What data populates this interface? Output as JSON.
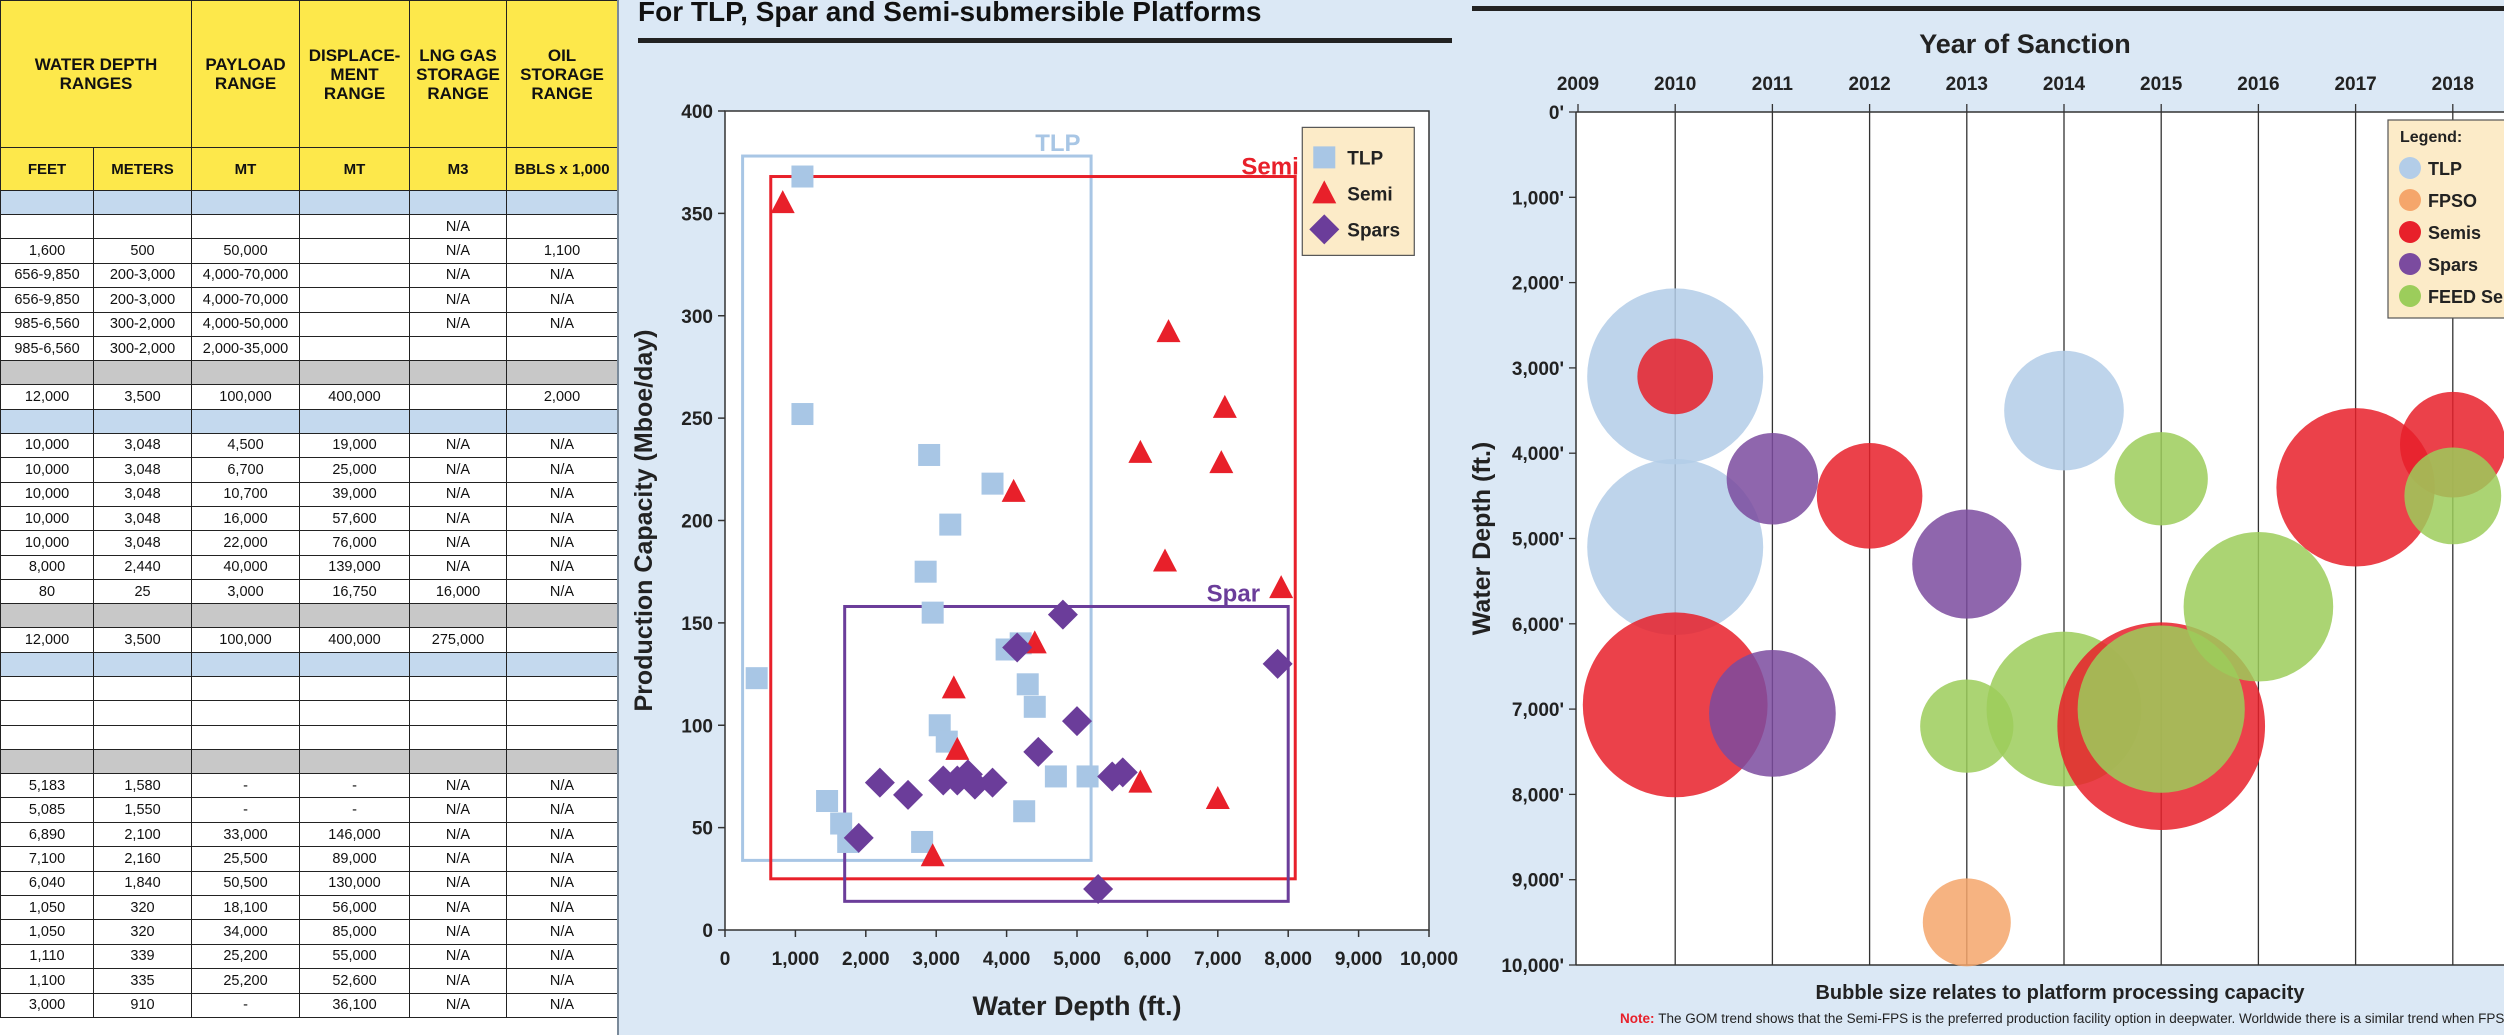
{
  "table": {
    "headers": [
      "WATER DEPTH RANGES",
      "PAYLOAD RANGE",
      "DISPLACE-MENT RANGE",
      "LNG GAS STORAGE RANGE",
      "OIL STORAGE RANGE"
    ],
    "units": [
      "FEET",
      "METERS",
      "MT",
      "MT",
      "M3",
      "BBLS x 1,000"
    ],
    "rows": [
      {
        "type": "blue",
        "cells": [
          "",
          "",
          "",
          "",
          "",
          ""
        ]
      },
      {
        "type": "white",
        "cells": [
          "",
          "",
          "",
          "",
          "N/A",
          ""
        ]
      },
      {
        "type": "white",
        "cells": [
          "1,600",
          "500",
          "50,000",
          "",
          "N/A",
          "1,100"
        ]
      },
      {
        "type": "white",
        "cells": [
          "656-9,850",
          "200-3,000",
          "4,000-70,000",
          "",
          "N/A",
          "N/A"
        ]
      },
      {
        "type": "white",
        "cells": [
          "656-9,850",
          "200-3,000",
          "4,000-70,000",
          "",
          "N/A",
          "N/A"
        ]
      },
      {
        "type": "white",
        "cells": [
          "985-6,560",
          "300-2,000",
          "4,000-50,000",
          "",
          "N/A",
          "N/A"
        ]
      },
      {
        "type": "white",
        "cells": [
          "985-6,560",
          "300-2,000",
          "2,000-35,000",
          "",
          "",
          ""
        ]
      },
      {
        "type": "gray",
        "cells": [
          "",
          "",
          "",
          "",
          "",
          ""
        ]
      },
      {
        "type": "white",
        "cells": [
          "12,000",
          "3,500",
          "100,000",
          "400,000",
          "",
          "2,000"
        ]
      },
      {
        "type": "blue",
        "cells": [
          "",
          "",
          "",
          "",
          "",
          ""
        ]
      },
      {
        "type": "white",
        "cells": [
          "10,000",
          "3,048",
          "4,500",
          "19,000",
          "N/A",
          "N/A"
        ]
      },
      {
        "type": "white",
        "cells": [
          "10,000",
          "3,048",
          "6,700",
          "25,000",
          "N/A",
          "N/A"
        ]
      },
      {
        "type": "white",
        "cells": [
          "10,000",
          "3,048",
          "10,700",
          "39,000",
          "N/A",
          "N/A"
        ]
      },
      {
        "type": "white",
        "cells": [
          "10,000",
          "3,048",
          "16,000",
          "57,600",
          "N/A",
          "N/A"
        ]
      },
      {
        "type": "white",
        "cells": [
          "10,000",
          "3,048",
          "22,000",
          "76,000",
          "N/A",
          "N/A"
        ]
      },
      {
        "type": "white",
        "cells": [
          "8,000",
          "2,440",
          "40,000",
          "139,000",
          "N/A",
          "N/A"
        ]
      },
      {
        "type": "white",
        "cells": [
          "80",
          "25",
          "3,000",
          "16,750",
          "16,000",
          "N/A"
        ]
      },
      {
        "type": "gray",
        "cells": [
          "",
          "",
          "",
          "",
          "",
          ""
        ]
      },
      {
        "type": "white",
        "cells": [
          "12,000",
          "3,500",
          "100,000",
          "400,000",
          "275,000",
          ""
        ]
      },
      {
        "type": "blue",
        "cells": [
          "",
          "",
          "",
          "",
          "",
          ""
        ]
      },
      {
        "type": "white",
        "cells": [
          "",
          "",
          "",
          "",
          "",
          ""
        ]
      },
      {
        "type": "white",
        "cells": [
          "",
          "",
          "",
          "",
          "",
          ""
        ]
      },
      {
        "type": "white",
        "cells": [
          "",
          "",
          "",
          "",
          "",
          ""
        ]
      },
      {
        "type": "gray",
        "cells": [
          "",
          "",
          "",
          "",
          "",
          ""
        ]
      },
      {
        "type": "white",
        "cells": [
          "5,183",
          "1,580",
          "-",
          "-",
          "N/A",
          "N/A"
        ]
      },
      {
        "type": "white",
        "cells": [
          "5,085",
          "1,550",
          "-",
          "-",
          "N/A",
          "N/A"
        ]
      },
      {
        "type": "white",
        "cells": [
          "6,890",
          "2,100",
          "33,000",
          "146,000",
          "N/A",
          "N/A"
        ]
      },
      {
        "type": "white",
        "cells": [
          "7,100",
          "2,160",
          "25,500",
          "89,000",
          "N/A",
          "N/A"
        ]
      },
      {
        "type": "white",
        "cells": [
          "6,040",
          "1,840",
          "50,500",
          "130,000",
          "N/A",
          "N/A"
        ]
      },
      {
        "type": "white",
        "cells": [
          "1,050",
          "320",
          "18,100",
          "56,000",
          "N/A",
          "N/A"
        ]
      },
      {
        "type": "white",
        "cells": [
          "1,050",
          "320",
          "34,000",
          "85,000",
          "N/A",
          "N/A"
        ]
      },
      {
        "type": "white",
        "cells": [
          "1,110",
          "339",
          "25,200",
          "55,000",
          "N/A",
          "N/A"
        ]
      },
      {
        "type": "white",
        "cells": [
          "1,100",
          "335",
          "25,200",
          "52,600",
          "N/A",
          "N/A"
        ]
      },
      {
        "type": "white",
        "cells": [
          "3,000",
          "910",
          "-",
          "36,100",
          "N/A",
          "N/A"
        ]
      }
    ]
  },
  "mid": {
    "title": "For TLP, Spar and Semi-submersible Platforms"
  },
  "chart_data": [
    {
      "type": "scatter",
      "xlabel": "Water Depth (ft.)",
      "ylabel": "Production Capacity (Mboe/day)",
      "xlim": [
        0,
        10000
      ],
      "ylim": [
        0,
        400
      ],
      "xticks": [
        0,
        1000,
        2000,
        3000,
        4000,
        5000,
        6000,
        7000,
        8000,
        9000,
        10000
      ],
      "xtick_labels": [
        "0",
        "1,000",
        "2,000",
        "3,000",
        "4,000",
        "5,000",
        "6,000",
        "7,000",
        "8,000",
        "9,000",
        "10,000"
      ],
      "yticks": [
        0,
        50,
        100,
        150,
        200,
        250,
        300,
        350,
        400
      ],
      "legend_position": "top-right",
      "series": [
        {
          "name": "TLP",
          "marker": "square",
          "color": "#a8c6e5",
          "points": [
            [
              450,
              123
            ],
            [
              1100,
              368
            ],
            [
              1100,
              252
            ],
            [
              1450,
              63
            ],
            [
              1650,
              52
            ],
            [
              1750,
              43
            ],
            [
              2800,
              43
            ],
            [
              2850,
              175
            ],
            [
              2900,
              232
            ],
            [
              2950,
              155
            ],
            [
              3050,
              100
            ],
            [
              3150,
              92
            ],
            [
              3200,
              198
            ],
            [
              3800,
              218
            ],
            [
              4000,
              137
            ],
            [
              4200,
              140
            ],
            [
              4250,
              58
            ],
            [
              4300,
              120
            ],
            [
              4400,
              109
            ],
            [
              4700,
              75
            ],
            [
              5150,
              75
            ]
          ]
        },
        {
          "name": "Semi",
          "marker": "triangle",
          "color": "#e8202a",
          "points": [
            [
              820,
              355
            ],
            [
              2950,
              36
            ],
            [
              3250,
              118
            ],
            [
              3300,
              88
            ],
            [
              4100,
              214
            ],
            [
              4400,
              140
            ],
            [
              5900,
              72
            ],
            [
              5900,
              233
            ],
            [
              6250,
              180
            ],
            [
              6300,
              292
            ],
            [
              7000,
              64
            ],
            [
              7050,
              228
            ],
            [
              7100,
              255
            ],
            [
              7900,
              167
            ]
          ]
        },
        {
          "name": "Spars",
          "marker": "diamond",
          "color": "#6b3d9a",
          "points": [
            [
              1900,
              45
            ],
            [
              2200,
              72
            ],
            [
              2600,
              66
            ],
            [
              3100,
              73
            ],
            [
              3300,
              73
            ],
            [
              3450,
              76
            ],
            [
              3550,
              71
            ],
            [
              3800,
              72
            ],
            [
              4150,
              138
            ],
            [
              4450,
              87
            ],
            [
              4800,
              154
            ],
            [
              5000,
              102
            ],
            [
              5300,
              20
            ],
            [
              5500,
              75
            ],
            [
              5650,
              77
            ],
            [
              7850,
              130
            ]
          ]
        }
      ],
      "boxes": [
        {
          "name": "TLP",
          "x": [
            250,
            5200
          ],
          "y": [
            34,
            378
          ],
          "color": "#a8c6e5"
        },
        {
          "name": "Semi",
          "x": [
            650,
            8100
          ],
          "y": [
            25,
            368
          ],
          "color": "#e8202a"
        },
        {
          "name": "Spar",
          "x": [
            1700,
            8000
          ],
          "y": [
            14,
            158
          ],
          "color": "#6b3d9a"
        }
      ]
    },
    {
      "type": "bubble",
      "title": "Year of Sanction",
      "ylabel": "Water Depth (ft.)",
      "subtitle": "Bubble size relates to platform processing capacity",
      "note_label": "Note:",
      "note_text": "The GOM trend shows that the Semi-FPS is the preferred production facility option in deepwater. Worldwide there is a similar trend when FPSO's are not used",
      "xlim": [
        2009,
        2018.6
      ],
      "years": [
        "2009",
        "2010",
        "2011",
        "2012",
        "2013",
        "2014",
        "2015",
        "2016",
        "2017",
        "2018"
      ],
      "ylim": [
        0,
        10000
      ],
      "yticks": [
        0,
        1000,
        2000,
        3000,
        4000,
        5000,
        6000,
        7000,
        8000,
        9000,
        10000
      ],
      "ytick_labels": [
        "0'",
        "1,000'",
        "2,000'",
        "3,000'",
        "4,000'",
        "5,000'",
        "6,000'",
        "7,000'",
        "8,000'",
        "9,000'",
        "10,000'"
      ],
      "legend": {
        "title": "Legend:",
        "entries": [
          {
            "name": "TLP",
            "color": "#b3cde8"
          },
          {
            "name": "FPSO",
            "color": "#f5a66b"
          },
          {
            "name": "Semis",
            "color": "#e8202a"
          },
          {
            "name": "Spars",
            "color": "#7b4b9f"
          },
          {
            "name": "FEED Semi",
            "color": "#9ccd5b"
          }
        ]
      },
      "bubbles": [
        {
          "type": "TLP",
          "year": 2010,
          "depth": 3100,
          "size": 1.0
        },
        {
          "type": "TLP",
          "year": 2010,
          "depth": 5100,
          "size": 1.0
        },
        {
          "type": "Semis",
          "year": 2010,
          "depth": 3100,
          "size": 0.43
        },
        {
          "type": "Semis",
          "year": 2010,
          "depth": 6950,
          "size": 1.05
        },
        {
          "type": "Spars",
          "year": 2011,
          "depth": 4300,
          "size": 0.52
        },
        {
          "type": "Spars",
          "year": 2011,
          "depth": 7050,
          "size": 0.72
        },
        {
          "type": "Semis",
          "year": 2012,
          "depth": 4500,
          "size": 0.6
        },
        {
          "type": "Spars",
          "year": 2013,
          "depth": 5300,
          "size": 0.62
        },
        {
          "type": "FEED Semi",
          "year": 2013,
          "depth": 7200,
          "size": 0.53
        },
        {
          "type": "FPSO",
          "year": 2013,
          "depth": 9500,
          "size": 0.5
        },
        {
          "type": "TLP",
          "year": 2014,
          "depth": 3500,
          "size": 0.68
        },
        {
          "type": "FEED Semi",
          "year": 2014,
          "depth": 7000,
          "size": 0.88
        },
        {
          "type": "FEED Semi",
          "year": 2015,
          "depth": 4300,
          "size": 0.53
        },
        {
          "type": "Semis",
          "year": 2015,
          "depth": 7200,
          "size": 1.18
        },
        {
          "type": "FEED Semi",
          "year": 2015,
          "depth": 7000,
          "size": 0.95
        },
        {
          "type": "FEED Semi",
          "year": 2016,
          "depth": 5800,
          "size": 0.85
        },
        {
          "type": "Semis",
          "year": 2017,
          "depth": 4400,
          "size": 0.9
        },
        {
          "type": "Semis",
          "year": 2018,
          "depth": 3900,
          "size": 0.6
        },
        {
          "type": "FEED Semi",
          "year": 2018,
          "depth": 4500,
          "size": 0.55
        }
      ]
    }
  ]
}
